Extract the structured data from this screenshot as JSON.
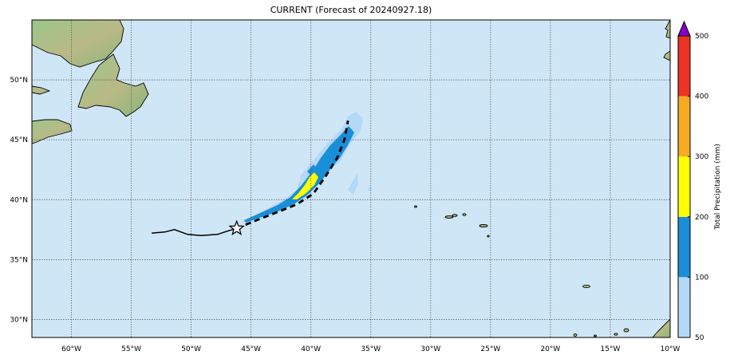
{
  "title": "CURRENT (Forecast of 20240927.18)",
  "map": {
    "lon_range": [
      -63.3,
      -10
    ],
    "lat_range": [
      28.5,
      55
    ],
    "lon_ticks": [
      {
        "v": -60,
        "label": "60°W"
      },
      {
        "v": -55,
        "label": "55°W"
      },
      {
        "v": -50,
        "label": "50°W"
      },
      {
        "v": -45,
        "label": "45°W"
      },
      {
        "v": -40,
        "label": "40°W"
      },
      {
        "v": -35,
        "label": "35°W"
      },
      {
        "v": -30,
        "label": "30°W"
      },
      {
        "v": -25,
        "label": "25°W"
      },
      {
        "v": -20,
        "label": "20°W"
      },
      {
        "v": -15,
        "label": "15°W"
      },
      {
        "v": -10,
        "label": "10°W"
      }
    ],
    "lat_ticks": [
      {
        "v": 30,
        "label": "30°N"
      },
      {
        "v": 35,
        "label": "35°N"
      },
      {
        "v": 40,
        "label": "40°N"
      },
      {
        "v": 45,
        "label": "45°N"
      },
      {
        "v": 50,
        "label": "50°N"
      }
    ],
    "colors": {
      "ocean": "#cfe6f6",
      "land_low": "#8fbf7f",
      "land_high": "#c9a77a",
      "grid": "#555555"
    },
    "past_track": [
      [
        -53.3,
        37.2
      ],
      [
        -52.2,
        37.3
      ],
      [
        -51.4,
        37.5
      ],
      [
        -50.3,
        37.1
      ],
      [
        -49.2,
        37.0
      ],
      [
        -47.8,
        37.1
      ],
      [
        -46.9,
        37.4
      ],
      [
        -46.2,
        37.6
      ]
    ],
    "forecast_track": [
      [
        -46.2,
        37.6
      ],
      [
        -44.5,
        38.3
      ],
      [
        -42.7,
        39.0
      ],
      [
        -41.2,
        39.6
      ],
      [
        -39.8,
        40.5
      ],
      [
        -38.8,
        41.9
      ],
      [
        -37.8,
        43.5
      ],
      [
        -37.2,
        45.0
      ],
      [
        -36.9,
        46.6
      ]
    ],
    "storm_position": [
      -46.2,
      37.6
    ]
  },
  "colorbar": {
    "label": "Total Precipitation (mm)",
    "levels": [
      50,
      100,
      200,
      300,
      400,
      500
    ],
    "level_labels": [
      "50",
      "100",
      "200",
      "300",
      "400",
      "500"
    ],
    "colors": [
      "#b3d8f8",
      "#1a8ed6",
      "#ffff00",
      "#f5ac22",
      "#ec3324"
    ],
    "extend_color": "#8800cc"
  }
}
